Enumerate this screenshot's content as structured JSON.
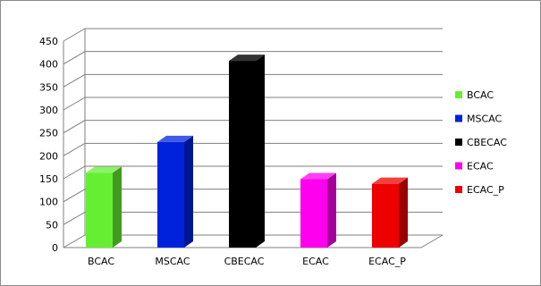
{
  "chart_data": {
    "type": "bar",
    "title": "",
    "xlabel": "",
    "ylabel": "",
    "categories": [
      "BCAC",
      "MSCAC",
      "CBECAC",
      "ECAC",
      "ECAC_P"
    ],
    "values": [
      163,
      230,
      407,
      149,
      139
    ],
    "colors": [
      "#66ee33",
      "#0022dd",
      "#000000",
      "#ff00ee",
      "#ee0000"
    ],
    "ylim": [
      0,
      450
    ],
    "yticks": [
      "0",
      "50",
      "100",
      "150",
      "200",
      "250",
      "300",
      "350",
      "400",
      "450"
    ],
    "grid": true,
    "three_d": true,
    "legend": {
      "position": "right",
      "entries": [
        "BCAC",
        "MSCAC",
        "CBECAC",
        "ECAC",
        "ECAC_P"
      ]
    }
  }
}
